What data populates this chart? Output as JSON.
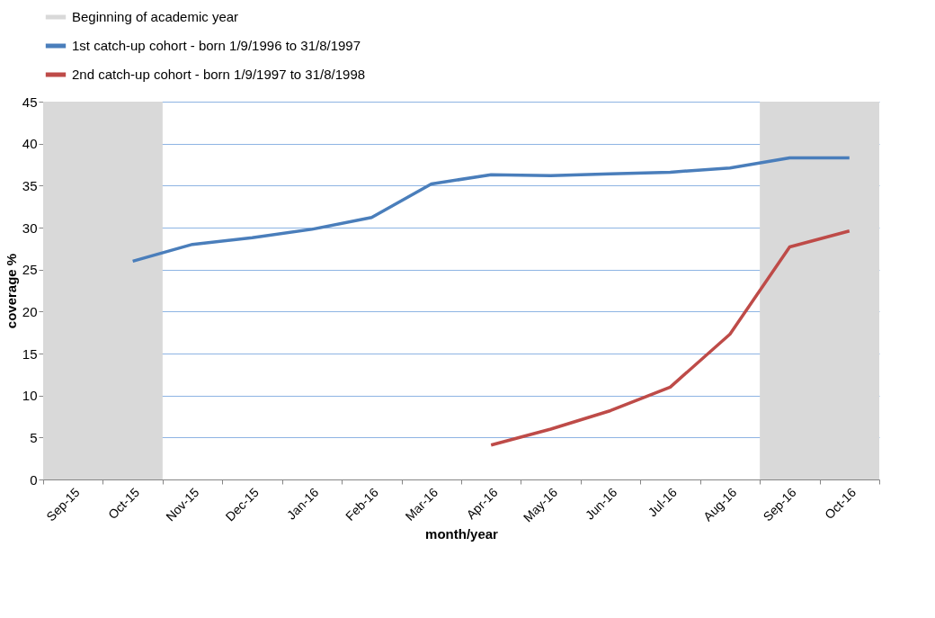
{
  "chart_data": {
    "type": "line",
    "categories": [
      "Sep-15",
      "Oct-15",
      "Nov-15",
      "Dec-15",
      "Jan-16",
      "Feb-16",
      "Mar-16",
      "Apr-16",
      "May-16",
      "Jun-16",
      "Jul-16",
      "Aug-16",
      "Sep-16",
      "Oct-16"
    ],
    "series": [
      {
        "name": "1st catch-up cohort - born 1/9/1996 to 31/8/1997",
        "color": "#4a7ebb",
        "values": [
          null,
          26.0,
          28.0,
          28.8,
          29.8,
          31.2,
          35.2,
          36.3,
          36.2,
          36.4,
          36.6,
          37.1,
          38.3,
          38.3
        ]
      },
      {
        "name": "2nd catch-up cohort - born 1/9/1997 to 31/8/1998",
        "color": "#be4b48",
        "values": [
          null,
          null,
          null,
          null,
          null,
          null,
          null,
          4.1,
          6.0,
          8.2,
          11.0,
          17.3,
          27.7,
          29.6
        ]
      }
    ],
    "bands": [
      {
        "axis": "x",
        "from": "Sep-15",
        "to": "Oct-15",
        "label": "Beginning of academic year",
        "color": "#d9d9d9"
      },
      {
        "axis": "x",
        "from": "Sep-16",
        "to": "Oct-16",
        "color": "#d9d9d9"
      }
    ],
    "xlabel": "month/year",
    "ylabel": "coverage %",
    "ylim": [
      0,
      45
    ],
    "yticks": [
      0,
      5,
      10,
      15,
      20,
      25,
      30,
      35,
      40,
      45
    ],
    "grid": "y",
    "legend": "top",
    "marker": "none",
    "line_style": "solid"
  }
}
